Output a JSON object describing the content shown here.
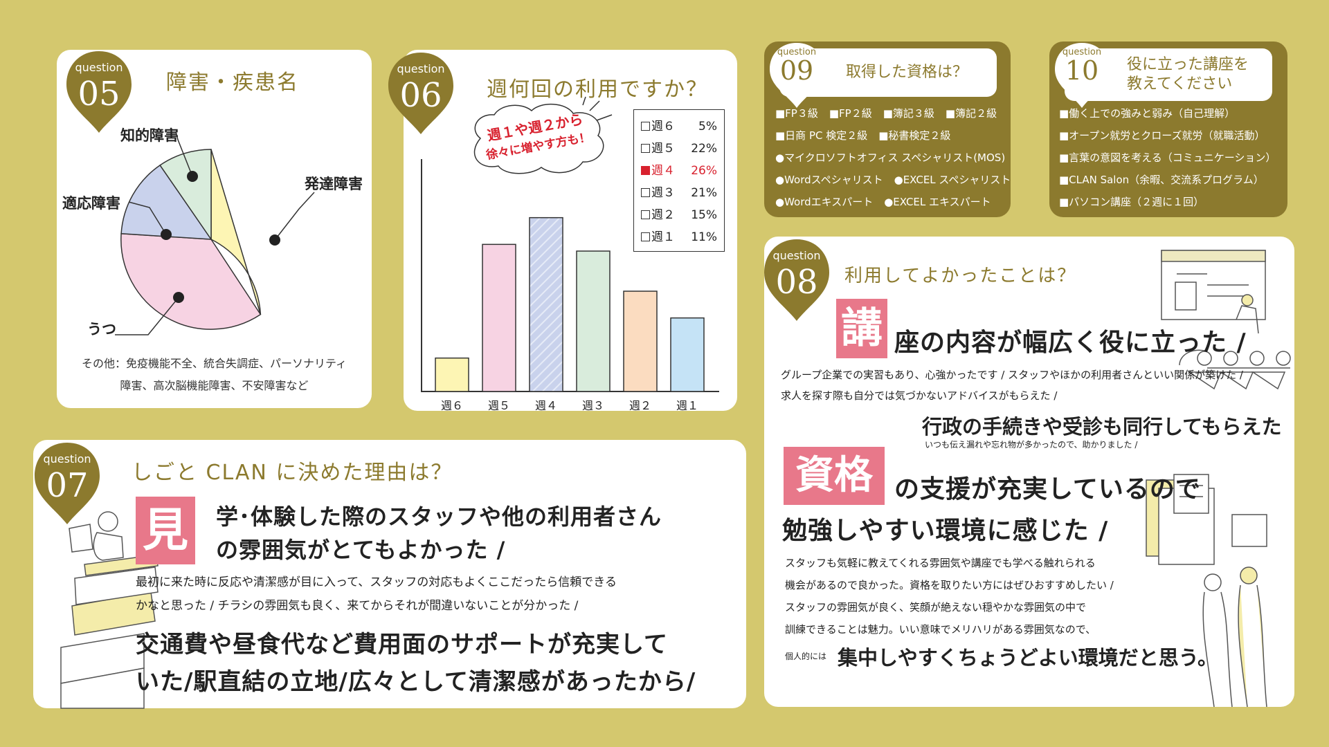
{
  "q05": {
    "label": "question",
    "number": "05",
    "title": "障害・疾患名",
    "labels": {
      "hattatsu": "発達障害",
      "chiteki": "知的障害",
      "tekio": "適応障害",
      "utsu": "うつ"
    },
    "note_line1": "その他：免疫機能不全、統合失調症、パーソナリティ",
    "note_line2": "障害、高次脳機能障害、不安障害など",
    "colors": {
      "hattatsu": "#fdf5b4",
      "utsu": "#f7d3e3",
      "tekio": "#c9d2ec",
      "chiteki": "#d9ecdc"
    }
  },
  "q06": {
    "label": "question",
    "number": "06",
    "title": "週何回の利用ですか？",
    "bubble_line1": "週１や週２から",
    "bubble_line2": "徐々に増やす方も！",
    "legend": [
      {
        "label": "週６",
        "value": "5%"
      },
      {
        "label": "週５",
        "value": "22%"
      },
      {
        "label": "週４",
        "value": "26%"
      },
      {
        "label": "週３",
        "value": "21%"
      },
      {
        "label": "週２",
        "value": "15%"
      },
      {
        "label": "週１",
        "value": "11%"
      }
    ]
  },
  "chart_data": {
    "type": "bar",
    "categories": [
      "週６",
      "週５",
      "週４",
      "週３",
      "週２",
      "週１"
    ],
    "values": [
      5,
      22,
      26,
      21,
      15,
      11
    ],
    "colors": [
      "#fdf5b4",
      "#f7d3e3",
      "#c9d2ec",
      "#d9ecdc",
      "#fbdcc0",
      "#c5e3f6"
    ],
    "highlight_index": 2
  },
  "q09": {
    "label": "question",
    "number": "09",
    "title": "取得した資格は？",
    "row1": [
      "■FP３級",
      "■FP２級",
      "■簿記３級",
      "■簿記２級"
    ],
    "row2": [
      "■日商 PC 検定２級",
      "■秘書検定２級"
    ],
    "row3": [
      "●マイクロソフトオフィス スペシャリスト(MOS)"
    ],
    "row4": [
      "●Wordスペシャリスト",
      "●EXCEL スペシャリスト"
    ],
    "row5": [
      "●Wordエキスパート",
      "●EXCEL エキスパート"
    ]
  },
  "q10": {
    "label": "question",
    "number": "10",
    "title_line1": "役に立った講座を",
    "title_line2": "教えてください",
    "items": [
      "■働く上での強みと弱み（自己理解）",
      "■オープン就労とクローズ就労（就職活動）",
      "■言葉の意図を考える（コミュニケーション）",
      "■CLAN Salon（余暇、交流系プログラム）",
      "■パソコン講座（２週に１回）"
    ]
  },
  "q08": {
    "label": "question",
    "number": "08",
    "title": "利用してよかったことは？",
    "kanji1": "講",
    "head1": "座の内容が幅広く役に立った /",
    "sub1a": "グループ企業での実習もあり、心強かったです / スタッフやほかの利用者さんといい関係が築けた /",
    "sub1b": "求人を探す際も自分では気づかないアドバイスがもらえた /",
    "head2": "行政の手続きや受診も同行してもらえた",
    "sub2": "いつも伝え漏れや忘れ物が多かったので、助かりました /",
    "kanji2": "資格",
    "head3a": "の支援が充実しているので",
    "head3b": "勉強しやすい環境に感じた /",
    "sub3a": "スタッフも気軽に教えてくれる雰囲気や講座でも学べる触れられる",
    "sub3b": "機会があるので良かった。資格を取りたい方にはぜひおすすめしたい /",
    "sub3c": "スタッフの雰囲気が良く、笑顔が絶えない穏やかな雰囲気の中で",
    "sub3d": "訓練できることは魅力。いい意味でメリハリがある雰囲気なので、",
    "prefix4": "個人的には",
    "head4": "集中しやすくちょうどよい環境だと思う。"
  },
  "q07": {
    "label": "question",
    "number": "07",
    "title": "しごと CLAN に決めた理由は？",
    "kanji": "見",
    "head1a": "学･体験した際のスタッフや他の利用者さん",
    "head1b": "の雰囲気がとてもよかった /",
    "sub1a": "最初に来た時に反応や清潔感が目に入って、スタッフの対応もよくここだったら信頼できる",
    "sub1b": "かなと思った / チラシの雰囲気も良く、来てからそれが間違いないことが分かった /",
    "head2a": "交通費や昼食代など費用面のサポートが充実して",
    "head2b": "いた/駅直結の立地/広々として清潔感があったから/"
  }
}
